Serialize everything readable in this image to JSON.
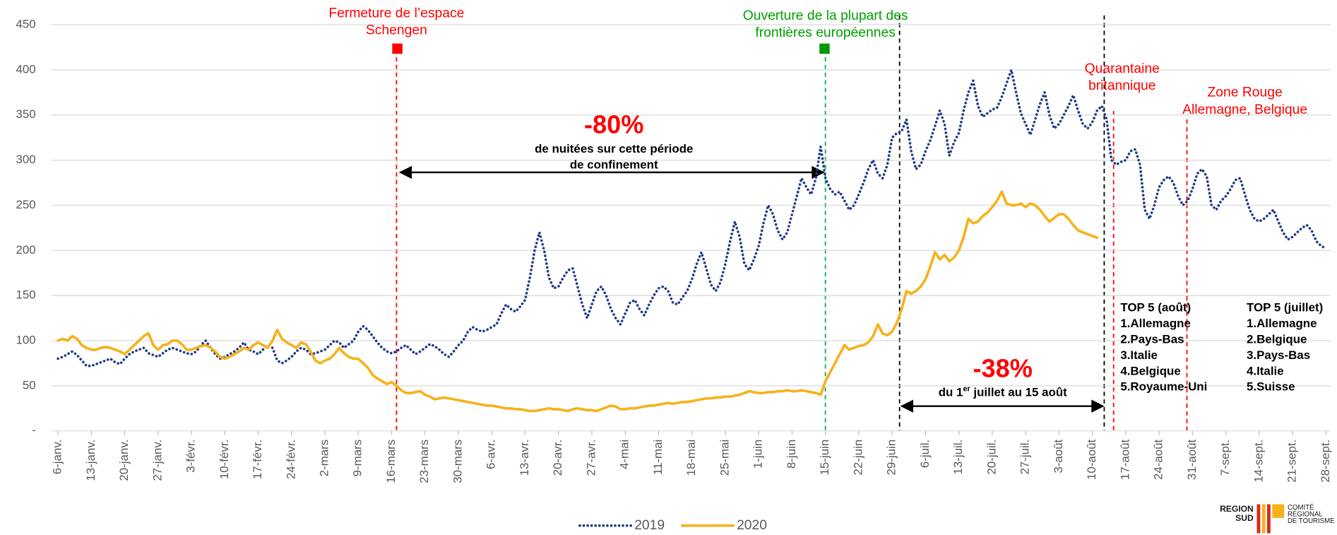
{
  "chart_data": {
    "type": "line",
    "categories": [
      "6-janv.",
      null,
      null,
      null,
      null,
      null,
      null,
      "13-janv.",
      null,
      null,
      null,
      null,
      null,
      null,
      "20-janv.",
      null,
      null,
      null,
      null,
      null,
      null,
      "27-janv.",
      null,
      null,
      null,
      null,
      null,
      null,
      "3-févr.",
      null,
      null,
      null,
      null,
      null,
      null,
      "10-févr.",
      null,
      null,
      null,
      null,
      null,
      null,
      "17-févr.",
      null,
      null,
      null,
      null,
      null,
      null,
      "24-févr.",
      null,
      null,
      null,
      null,
      null,
      null,
      "2-mars",
      null,
      null,
      null,
      null,
      null,
      null,
      "9-mars",
      null,
      null,
      null,
      null,
      null,
      null,
      "16-mars",
      null,
      null,
      null,
      null,
      null,
      null,
      "23-mars",
      null,
      null,
      null,
      null,
      null,
      null,
      "30-mars",
      null,
      null,
      null,
      null,
      null,
      null,
      "6-avr.",
      null,
      null,
      null,
      null,
      null,
      null,
      "13-avr.",
      null,
      null,
      null,
      null,
      null,
      null,
      "20-avr.",
      null,
      null,
      null,
      null,
      null,
      null,
      "27-avr.",
      null,
      null,
      null,
      null,
      null,
      null,
      "4-mai",
      null,
      null,
      null,
      null,
      null,
      null,
      "11-mai",
      null,
      null,
      null,
      null,
      null,
      null,
      "18-mai",
      null,
      null,
      null,
      null,
      null,
      null,
      "25-mai",
      null,
      null,
      null,
      null,
      null,
      null,
      "1-juin",
      null,
      null,
      null,
      null,
      null,
      null,
      "8-juin",
      null,
      null,
      null,
      null,
      null,
      null,
      "15-juin",
      null,
      null,
      null,
      null,
      null,
      null,
      "22-juin",
      null,
      null,
      null,
      null,
      null,
      null,
      "29-juin",
      null,
      null,
      null,
      null,
      null,
      null,
      "6-juil.",
      null,
      null,
      null,
      null,
      null,
      null,
      "13-juil.",
      null,
      null,
      null,
      null,
      null,
      null,
      "20-juil.",
      null,
      null,
      null,
      null,
      null,
      null,
      "27-juil.",
      null,
      null,
      null,
      null,
      null,
      null,
      "3-août",
      null,
      null,
      null,
      null,
      null,
      null,
      "10-août",
      null,
      null,
      null,
      null,
      null,
      null,
      "17-août",
      null,
      null,
      null,
      null,
      null,
      null,
      "24-août",
      null,
      null,
      null,
      null,
      null,
      null,
      "31-août",
      null,
      null,
      null,
      null,
      null,
      null,
      "7-sept.",
      null,
      null,
      null,
      null,
      null,
      null,
      "14-sept.",
      null,
      null,
      null,
      null,
      null,
      null,
      "21-sept.",
      null,
      null,
      null,
      null,
      null,
      null,
      "28-sept."
    ],
    "series": [
      {
        "name": "2019",
        "color": "#1f3c88",
        "style": "dotted",
        "values": [
          80,
          82,
          85,
          88,
          84,
          78,
          72,
          72,
          74,
          76,
          78,
          80,
          76,
          74,
          80,
          85,
          88,
          90,
          92,
          86,
          84,
          82,
          86,
          90,
          92,
          90,
          88,
          86,
          85,
          88,
          95,
          100,
          92,
          85,
          80,
          82,
          85,
          88,
          92,
          98,
          90,
          88,
          85,
          90,
          95,
          92,
          78,
          75,
          78,
          82,
          88,
          92,
          90,
          85,
          86,
          88,
          90,
          95,
          100,
          98,
          92,
          96,
          100,
          110,
          116,
          112,
          105,
          98,
          92,
          88,
          86,
          88,
          92,
          95,
          90,
          85,
          88,
          92,
          96,
          94,
          90,
          85,
          82,
          88,
          95,
          100,
          110,
          115,
          112,
          110,
          112,
          115,
          118,
          130,
          140,
          135,
          132,
          138,
          145,
          170,
          200,
          220,
          200,
          170,
          158,
          160,
          170,
          178,
          180,
          160,
          140,
          125,
          140,
          155,
          160,
          150,
          135,
          125,
          118,
          130,
          142,
          145,
          135,
          128,
          140,
          150,
          158,
          160,
          155,
          142,
          140,
          148,
          155,
          168,
          185,
          198,
          180,
          162,
          155,
          165,
          185,
          210,
          232,
          215,
          185,
          178,
          190,
          205,
          230,
          250,
          240,
          222,
          212,
          220,
          240,
          260,
          280,
          270,
          262,
          280,
          315,
          280,
          268,
          262,
          265,
          255,
          245,
          250,
          262,
          275,
          290,
          300,
          285,
          280,
          295,
          325,
          330,
          332,
          345,
          310,
          290,
          295,
          310,
          322,
          338,
          355,
          340,
          305,
          320,
          330,
          355,
          375,
          388,
          360,
          348,
          352,
          356,
          358,
          370,
          385,
          400,
          375,
          352,
          340,
          328,
          345,
          362,
          375,
          350,
          335,
          340,
          350,
          360,
          372,
          355,
          340,
          335,
          342,
          355,
          360,
          345,
          300,
          295,
          298,
          300,
          310,
          312,
          295,
          245,
          235,
          250,
          270,
          278,
          282,
          275,
          260,
          250,
          255,
          268,
          285,
          290,
          282,
          250,
          245,
          255,
          260,
          268,
          278,
          280,
          262,
          245,
          235,
          232,
          235,
          240,
          245,
          232,
          220,
          212,
          215,
          220,
          225,
          228,
          222,
          210,
          205,
          202
        ]
      },
      {
        "name": "2020",
        "color": "#f5b21b",
        "style": "solid",
        "values": [
          100,
          102,
          100,
          105,
          102,
          95,
          92,
          90,
          90,
          92,
          93,
          92,
          90,
          88,
          85,
          90,
          95,
          100,
          105,
          108,
          95,
          90,
          95,
          96,
          100,
          100,
          96,
          90,
          90,
          92,
          94,
          95,
          92,
          88,
          82,
          80,
          82,
          85,
          88,
          92,
          90,
          95,
          98,
          95,
          92,
          100,
          112,
          102,
          98,
          95,
          92,
          98,
          96,
          88,
          78,
          75,
          78,
          80,
          85,
          92,
          86,
          82,
          80,
          80,
          75,
          70,
          62,
          58,
          55,
          52,
          54,
          50,
          45,
          42,
          42,
          43,
          44,
          40,
          38,
          35,
          36,
          37,
          36,
          35,
          34,
          33,
          32,
          31,
          30,
          29,
          28,
          28,
          27,
          26,
          25,
          25,
          24,
          24,
          23,
          22,
          22,
          23,
          24,
          25,
          24,
          24,
          23,
          22,
          24,
          25,
          24,
          23,
          23,
          22,
          24,
          26,
          28,
          27,
          24,
          24,
          25,
          25,
          26,
          27,
          28,
          28,
          29,
          30,
          31,
          30,
          31,
          32,
          32,
          33,
          34,
          35,
          36,
          36,
          37,
          37,
          38,
          38,
          39,
          40,
          42,
          44,
          43,
          42,
          42,
          43,
          43,
          44,
          44,
          45,
          44,
          44,
          45,
          44,
          43,
          42,
          40,
          55,
          65,
          75,
          85,
          95,
          90,
          92,
          94,
          95,
          98,
          105,
          118,
          108,
          106,
          110,
          120,
          135,
          155,
          152,
          155,
          160,
          168,
          182,
          198,
          190,
          195,
          188,
          192,
          200,
          215,
          235,
          230,
          232,
          238,
          242,
          248,
          255,
          265,
          252,
          250,
          250,
          252,
          248,
          252,
          250,
          245,
          238,
          232,
          236,
          240,
          240,
          235,
          228,
          222,
          220,
          218,
          216,
          214,
          null,
          null,
          null,
          null,
          null,
          null,
          null,
          null,
          null,
          null,
          null,
          null,
          null,
          null,
          null,
          null,
          null,
          null,
          null,
          null,
          null,
          null,
          null,
          null,
          null,
          null,
          null,
          null,
          null,
          null,
          null,
          null,
          null,
          null,
          null,
          null,
          null,
          null,
          null,
          null,
          null,
          null,
          null,
          null,
          null,
          null,
          null,
          null
        ]
      }
    ],
    "ylim": [
      0,
      450
    ],
    "yticks": [
      {
        "value": 0,
        "label": "-"
      },
      50,
      100,
      150,
      200,
      250,
      300,
      350,
      400,
      450
    ],
    "grid": true,
    "legend": "bottom",
    "annotations": [
      {
        "lines": [
          "Fermeture de l’espace",
          "Schengen"
        ],
        "color": "#ff0000"
      },
      {
        "lines": [
          "Ouverture de la plupart des",
          "frontières européennes"
        ],
        "color": "#00a000"
      },
      {
        "lines": [
          "Quarantaine",
          "britannique"
        ],
        "color": "#ff0000"
      },
      {
        "lines": [
          "Zone Rouge",
          "Allemagne, Belgique"
        ],
        "color": "#ff0000"
      }
    ],
    "callouts": [
      {
        "headline": "-80%",
        "lines": [
          "de nuitées sur cette période",
          "de confinement"
        ]
      },
      {
        "headline": "-38%",
        "lines": [
          "du 1",
          "er",
          " juillet au 15 août"
        ]
      }
    ],
    "lists": [
      {
        "title": "TOP 5 (août)",
        "items": [
          "1.Allemagne",
          "2.Pays-Bas",
          "3.Italie",
          "4.Belgique",
          "5.Royaume-Uni"
        ]
      },
      {
        "title": "TOP 5 (juillet)",
        "items": [
          "1.Allemagne",
          "2.Belgique",
          "3.Pays-Bas",
          "4.Italie",
          "5.Suisse"
        ]
      }
    ],
    "logo": [
      "REGION",
      "SUD",
      "COMITÉ",
      "RÉGIONAL",
      "DE TOURISME"
    ]
  }
}
